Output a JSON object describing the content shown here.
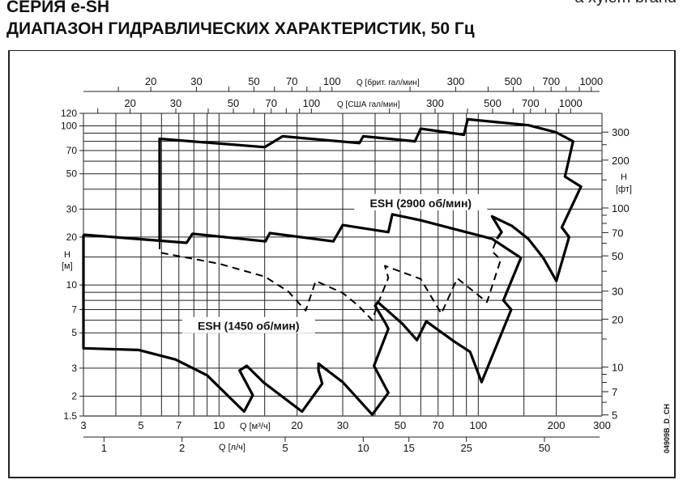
{
  "header": {
    "title_line1": "СЕРИЯ e-SH",
    "title_line2": "ДИАПАЗОН ГИДРАВЛИЧЕСКИХ ХАРАКТЕРИСТИК, 50 Гц",
    "brand": "a xylem brand"
  },
  "drawing_code": "04909B_D_CH",
  "chart_data": {
    "type": "line",
    "xscale": "log",
    "yscale": "log",
    "xlim": [
      3,
      300
    ],
    "ylim": [
      1.5,
      120
    ],
    "grid": true,
    "xlabel": "Q [м³/ч]",
    "ylabel": "H [м]",
    "y2label": "H [фт]",
    "x2label_us": "Q [США гал/мин]",
    "x2label_brit": "Q [брит. гал/мин]",
    "x3label": "Q [л/ч]",
    "x_ticks": [
      3,
      5,
      7,
      10,
      20,
      30,
      50,
      70,
      100,
      200,
      300
    ],
    "x_grid": [
      3,
      4,
      5,
      6,
      7,
      8,
      9,
      10,
      15,
      20,
      30,
      40,
      50,
      60,
      70,
      80,
      90,
      100,
      150,
      200,
      300
    ],
    "y_ticks": [
      1.5,
      2,
      3,
      5,
      7,
      10,
      20,
      30,
      50,
      70,
      100,
      120
    ],
    "y_grid": [
      1.5,
      2,
      3,
      5,
      6,
      7,
      8,
      9,
      10,
      15,
      20,
      30,
      40,
      50,
      60,
      70,
      80,
      90,
      100,
      120
    ],
    "y2_ticks_ft": [
      5,
      7,
      10,
      20,
      30,
      50,
      70,
      100,
      200,
      300
    ],
    "y2_minor_ft": [
      6,
      8,
      9,
      15,
      40,
      60,
      80,
      90,
      150,
      250
    ],
    "us_gpm_ticks": [
      20,
      30,
      50,
      70,
      100,
      300,
      500,
      700,
      1000
    ],
    "us_gpm_minor": [
      15,
      40,
      60,
      80,
      90,
      200,
      400,
      600,
      800,
      900
    ],
    "brit_gpm_ticks": [
      20,
      30,
      50,
      70,
      100,
      300,
      500,
      700,
      1000
    ],
    "brit_gpm_minor": [
      15,
      40,
      60,
      80,
      90,
      200,
      400,
      600,
      800,
      900
    ],
    "ls_ticks": [
      1,
      2,
      5,
      10,
      15,
      25,
      50
    ],
    "series": [
      {
        "name": "ESH (2900 об/мин)",
        "style": "solid",
        "points": [
          [
            5.9,
            18.7
          ],
          [
            5.9,
            83
          ],
          [
            15,
            73.5
          ],
          [
            17.6,
            86
          ],
          [
            34.8,
            78
          ],
          [
            36,
            86
          ],
          [
            57,
            80
          ],
          [
            60,
            96
          ],
          [
            88,
            88
          ],
          [
            91,
            110
          ],
          [
            156,
            101
          ],
          [
            200,
            91
          ],
          [
            232,
            80
          ],
          [
            216,
            48
          ],
          [
            249,
            41.5
          ],
          [
            210,
            23
          ],
          [
            224,
            20
          ],
          [
            200,
            10.6
          ],
          [
            178,
            14.8
          ],
          [
            156,
            19.5
          ],
          [
            135,
            23.5
          ],
          [
            113,
            27
          ],
          [
            123,
            21.5
          ],
          [
            118,
            19.5
          ]
        ]
      },
      {
        "name": "",
        "style": "solid",
        "points": [
          [
            3,
            20.7
          ],
          [
            7.5,
            18.4
          ],
          [
            7.9,
            21
          ],
          [
            15.1,
            18.8
          ],
          [
            15.7,
            21.2
          ],
          [
            27.6,
            18.8
          ],
          [
            30,
            23.8
          ],
          [
            45,
            21.5
          ],
          [
            46.6,
            27.8
          ],
          [
            60,
            25.5
          ],
          [
            85,
            22
          ],
          [
            113,
            19.5
          ],
          [
            146,
            14.8
          ],
          [
            125,
            8
          ],
          [
            134,
            7
          ],
          [
            103,
            2.45
          ],
          [
            93,
            3.8
          ],
          [
            81,
            4.4
          ],
          [
            63,
            5.9
          ],
          [
            58,
            4.5
          ],
          [
            51,
            5.7
          ],
          [
            41,
            7.8
          ],
          [
            40,
            7.4
          ],
          [
            44,
            5.7
          ],
          [
            45,
            5.3
          ],
          [
            39.6,
            3.1
          ],
          [
            45,
            2.1
          ],
          [
            39,
            1.53
          ],
          [
            30,
            2.45
          ],
          [
            24.2,
            3.2
          ],
          [
            24.2,
            2.9
          ],
          [
            25,
            2.4
          ],
          [
            20.9,
            1.6
          ],
          [
            14.9,
            2.43
          ],
          [
            12.8,
            3.1
          ],
          [
            12,
            2.9
          ],
          [
            13.5,
            2.03
          ],
          [
            12.5,
            1.6
          ],
          [
            9,
            2.7
          ],
          [
            6.8,
            3.4
          ],
          [
            4.9,
            3.9
          ],
          [
            3,
            4
          ],
          [
            3,
            20.7
          ]
        ]
      },
      {
        "name": "ESH (1450 об/мин)",
        "style": "dashed",
        "points": [
          [
            5.9,
            18.7
          ],
          [
            5.9,
            16
          ],
          [
            10,
            13.6
          ],
          [
            15,
            11.3
          ],
          [
            18.5,
            9.1
          ],
          [
            21.6,
            6.9
          ],
          [
            23.6,
            10.6
          ],
          [
            30,
            8.9
          ],
          [
            34.5,
            7.4
          ],
          [
            39,
            6
          ],
          [
            41,
            7.6
          ],
          [
            45,
            11.1
          ],
          [
            43.6,
            13.2
          ],
          [
            60,
            10.9
          ],
          [
            72,
            6.6
          ],
          [
            83,
            11
          ],
          [
            108,
            7.8
          ],
          [
            122,
            14.4
          ],
          [
            113,
            16.3
          ],
          [
            118,
            19.5
          ]
        ]
      }
    ],
    "annotations": [
      {
        "text": "ESH (2900 об/мин)",
        "at": [
          60,
          32
        ]
      },
      {
        "text": "ESH (1450 об/мин)",
        "at": [
          13,
          5.4
        ]
      }
    ]
  }
}
